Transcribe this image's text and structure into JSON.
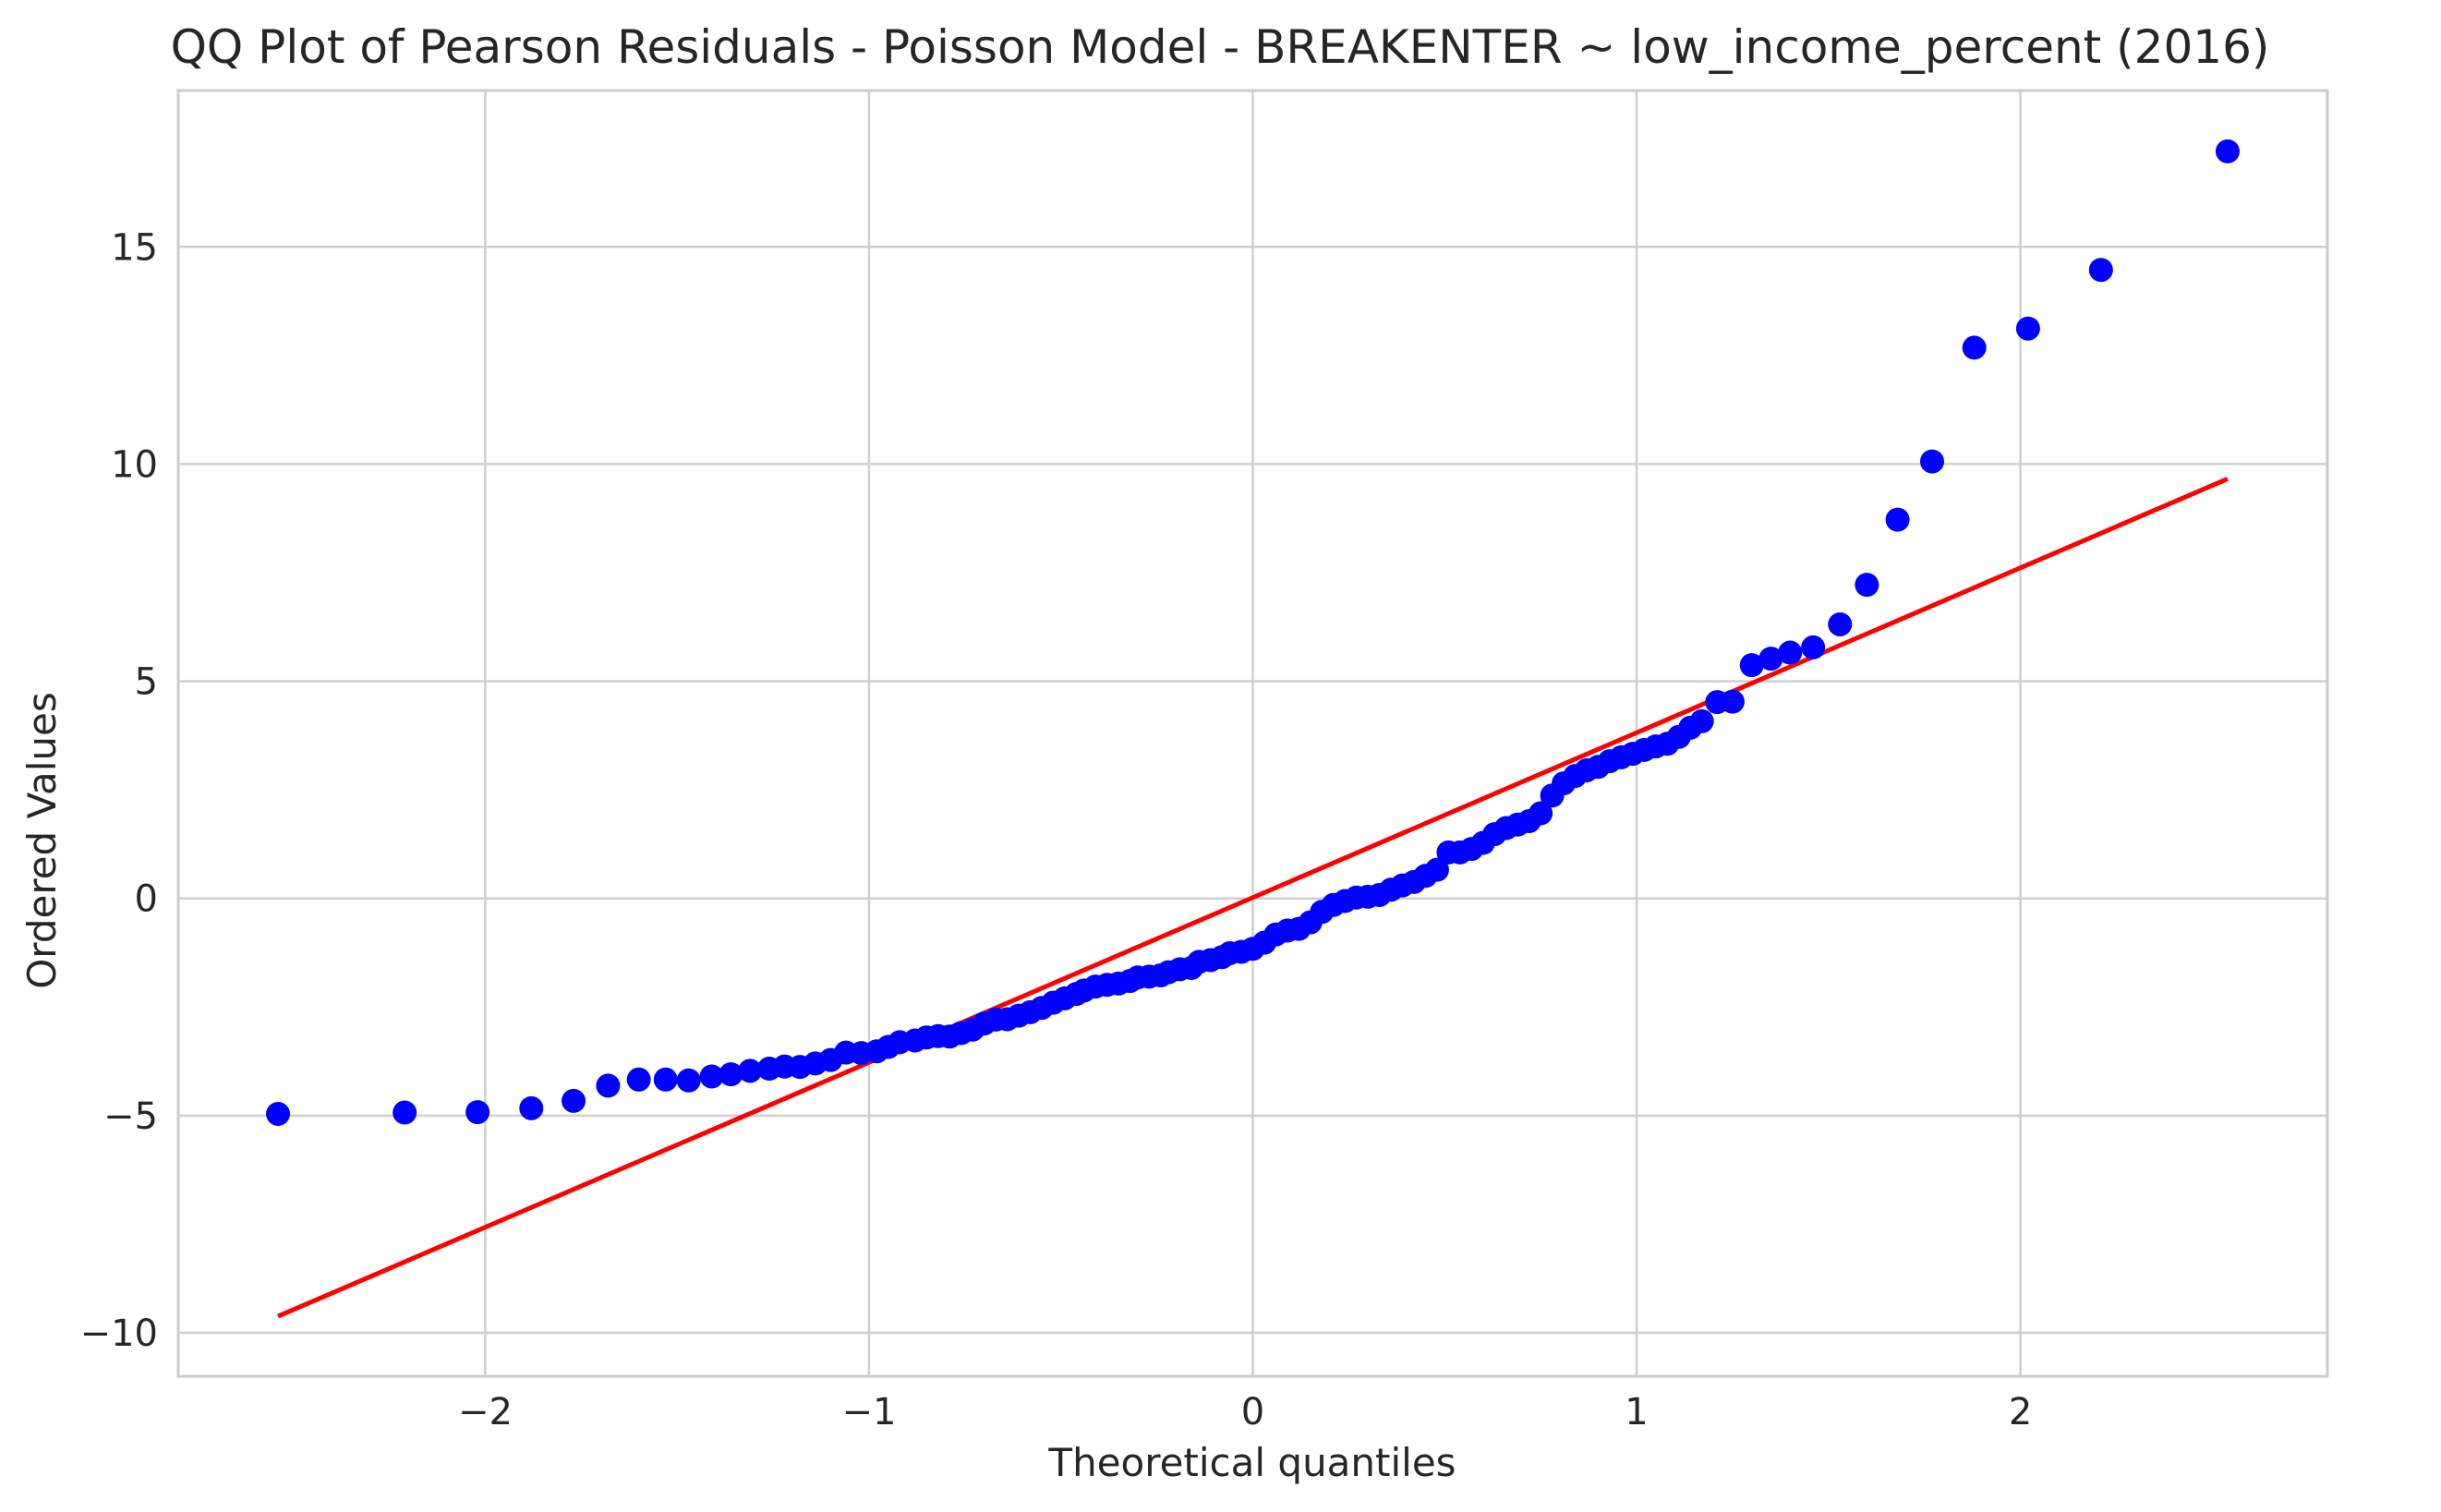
{
  "chart_data": {
    "type": "scatter",
    "title": "QQ Plot of Pearson Residuals - Poisson Model - BREAKENTER ~ low_income_percent (2016)",
    "xlabel": "Theoretical quantiles",
    "ylabel": "Ordered Values",
    "xlim": [
      -2.8,
      2.8
    ],
    "ylim": [
      -11,
      18.6
    ],
    "x_ticks": [
      -2,
      -1,
      0,
      1,
      2
    ],
    "x_tick_labels": [
      "−2",
      "−1",
      "0",
      "1",
      "2"
    ],
    "y_ticks": [
      -10,
      -5,
      0,
      5,
      10,
      15
    ],
    "y_tick_labels": [
      "−10",
      "−5",
      "0",
      "5",
      "10",
      "15"
    ],
    "grid": true,
    "colors": {
      "points": "#0000ff",
      "fit_line": "#ff0000",
      "grid": "#d0d0d0",
      "frame": "#cccccc"
    },
    "series": [
      {
        "kind": "points",
        "points": [
          [
            -2.54,
            -4.96
          ],
          [
            -2.21,
            -4.93
          ],
          [
            -2.02,
            -4.92
          ],
          [
            -1.88,
            -4.83
          ],
          [
            -1.77,
            -4.66
          ],
          [
            -1.68,
            -4.31
          ],
          [
            -1.6,
            -4.17
          ],
          [
            -1.53,
            -4.17
          ],
          [
            -1.47,
            -4.19
          ],
          [
            -1.41,
            -4.1
          ],
          [
            -1.36,
            -4.05
          ],
          [
            -1.31,
            -3.97
          ],
          [
            -1.26,
            -3.92
          ],
          [
            -1.22,
            -3.87
          ],
          [
            -1.18,
            -3.88
          ],
          [
            -1.14,
            -3.8
          ],
          [
            -1.1,
            -3.72
          ],
          [
            -1.06,
            -3.55
          ],
          [
            -1.02,
            -3.56
          ],
          [
            -0.98,
            -3.52
          ],
          [
            -0.95,
            -3.42
          ],
          [
            -0.92,
            -3.31
          ],
          [
            -0.88,
            -3.27
          ],
          [
            -0.85,
            -3.2
          ],
          [
            -0.82,
            -3.17
          ],
          [
            -0.79,
            -3.18
          ],
          [
            -0.76,
            -3.1
          ],
          [
            -0.73,
            -3.02
          ],
          [
            -0.7,
            -2.88
          ],
          [
            -0.67,
            -2.79
          ],
          [
            -0.64,
            -2.78
          ],
          [
            -0.61,
            -2.7
          ],
          [
            -0.58,
            -2.62
          ],
          [
            -0.55,
            -2.52
          ],
          [
            -0.52,
            -2.4
          ],
          [
            -0.49,
            -2.3
          ],
          [
            -0.46,
            -2.2
          ],
          [
            -0.44,
            -2.12
          ],
          [
            -0.41,
            -2.03
          ],
          [
            -0.38,
            -1.99
          ],
          [
            -0.35,
            -1.96
          ],
          [
            -0.32,
            -1.9
          ],
          [
            -0.3,
            -1.82
          ],
          [
            -0.27,
            -1.8
          ],
          [
            -0.24,
            -1.77
          ],
          [
            -0.22,
            -1.7
          ],
          [
            -0.19,
            -1.63
          ],
          [
            -0.16,
            -1.6
          ],
          [
            -0.14,
            -1.46
          ],
          [
            -0.11,
            -1.42
          ],
          [
            -0.08,
            -1.35
          ],
          [
            -0.06,
            -1.26
          ],
          [
            -0.03,
            -1.23
          ],
          [
            0.0,
            -1.16
          ],
          [
            0.03,
            -1.02
          ],
          [
            0.06,
            -0.83
          ],
          [
            0.09,
            -0.74
          ],
          [
            0.12,
            -0.7
          ],
          [
            0.15,
            -0.55
          ],
          [
            0.18,
            -0.31
          ],
          [
            0.21,
            -0.15
          ],
          [
            0.24,
            -0.06
          ],
          [
            0.27,
            0.02
          ],
          [
            0.3,
            0.04
          ],
          [
            0.33,
            0.08
          ],
          [
            0.36,
            0.2
          ],
          [
            0.39,
            0.3
          ],
          [
            0.42,
            0.38
          ],
          [
            0.45,
            0.52
          ],
          [
            0.48,
            0.66
          ],
          [
            0.51,
            1.06
          ],
          [
            0.54,
            1.06
          ],
          [
            0.57,
            1.14
          ],
          [
            0.6,
            1.28
          ],
          [
            0.63,
            1.48
          ],
          [
            0.66,
            1.62
          ],
          [
            0.69,
            1.7
          ],
          [
            0.72,
            1.78
          ],
          [
            0.75,
            1.96
          ],
          [
            0.78,
            2.37
          ],
          [
            0.81,
            2.65
          ],
          [
            0.84,
            2.82
          ],
          [
            0.87,
            2.95
          ],
          [
            0.9,
            3.03
          ],
          [
            0.93,
            3.16
          ],
          [
            0.96,
            3.25
          ],
          [
            0.99,
            3.33
          ],
          [
            1.02,
            3.42
          ],
          [
            1.05,
            3.5
          ],
          [
            1.08,
            3.56
          ],
          [
            1.11,
            3.72
          ],
          [
            1.14,
            3.93
          ],
          [
            1.17,
            4.08
          ],
          [
            1.21,
            4.52
          ],
          [
            1.25,
            4.53
          ],
          [
            1.3,
            5.37
          ],
          [
            1.35,
            5.52
          ],
          [
            1.4,
            5.66
          ],
          [
            1.46,
            5.78
          ],
          [
            1.53,
            6.31
          ],
          [
            1.6,
            7.22
          ],
          [
            1.68,
            8.72
          ],
          [
            1.77,
            10.06
          ],
          [
            1.88,
            12.68
          ],
          [
            2.02,
            13.12
          ],
          [
            2.21,
            14.47
          ],
          [
            2.54,
            17.2
          ]
        ]
      },
      {
        "kind": "fit_line",
        "points": [
          [
            -2.54,
            -9.62
          ],
          [
            2.54,
            9.66
          ]
        ]
      }
    ]
  }
}
